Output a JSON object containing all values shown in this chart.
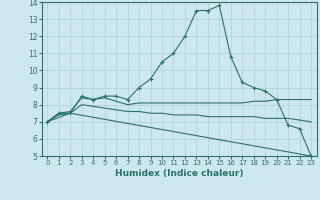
{
  "xlabel": "Humidex (Indice chaleur)",
  "xlim": [
    -0.5,
    23.5
  ],
  "ylim": [
    5,
    14
  ],
  "xticks": [
    0,
    1,
    2,
    3,
    4,
    5,
    6,
    7,
    8,
    9,
    10,
    11,
    12,
    13,
    14,
    15,
    16,
    17,
    18,
    19,
    20,
    21,
    22,
    23
  ],
  "yticks": [
    5,
    6,
    7,
    8,
    9,
    10,
    11,
    12,
    13,
    14
  ],
  "background_color": "#cde8ec",
  "grid_color": "#b0cfd4",
  "line_color": "#2a7070",
  "lines": [
    {
      "x": [
        0,
        1,
        2,
        3,
        4,
        5,
        6,
        7,
        8,
        9,
        10,
        11,
        12,
        13,
        14,
        15,
        16,
        17,
        18,
        19,
        20,
        21,
        22,
        23
      ],
      "y": [
        7.0,
        7.5,
        7.5,
        8.5,
        8.3,
        8.5,
        8.5,
        8.3,
        9.0,
        9.5,
        10.5,
        11.0,
        12.0,
        13.5,
        13.5,
        13.8,
        10.8,
        9.3,
        9.0,
        8.8,
        8.3,
        6.8,
        6.6,
        5.0
      ],
      "marker": "+"
    },
    {
      "x": [
        0,
        1,
        2,
        3,
        4,
        5,
        6,
        7,
        8,
        9,
        10,
        11,
        12,
        13,
        14,
        15,
        16,
        17,
        18,
        19,
        20,
        21,
        22,
        23
      ],
      "y": [
        7.0,
        7.5,
        7.6,
        8.4,
        8.3,
        8.4,
        8.2,
        8.0,
        8.1,
        8.1,
        8.1,
        8.1,
        8.1,
        8.1,
        8.1,
        8.1,
        8.1,
        8.1,
        8.2,
        8.2,
        8.3,
        8.3,
        8.3,
        8.3
      ],
      "marker": null
    },
    {
      "x": [
        0,
        1,
        2,
        3,
        4,
        5,
        6,
        7,
        8,
        9,
        10,
        11,
        12,
        13,
        14,
        15,
        16,
        17,
        18,
        19,
        20,
        21,
        22,
        23
      ],
      "y": [
        7.0,
        7.4,
        7.5,
        8.0,
        7.9,
        7.8,
        7.7,
        7.6,
        7.6,
        7.5,
        7.5,
        7.4,
        7.4,
        7.4,
        7.3,
        7.3,
        7.3,
        7.3,
        7.3,
        7.2,
        7.2,
        7.2,
        7.1,
        7.0
      ],
      "marker": null
    },
    {
      "x": [
        0,
        2,
        23
      ],
      "y": [
        7.0,
        7.5,
        5.0
      ],
      "marker": null
    }
  ]
}
